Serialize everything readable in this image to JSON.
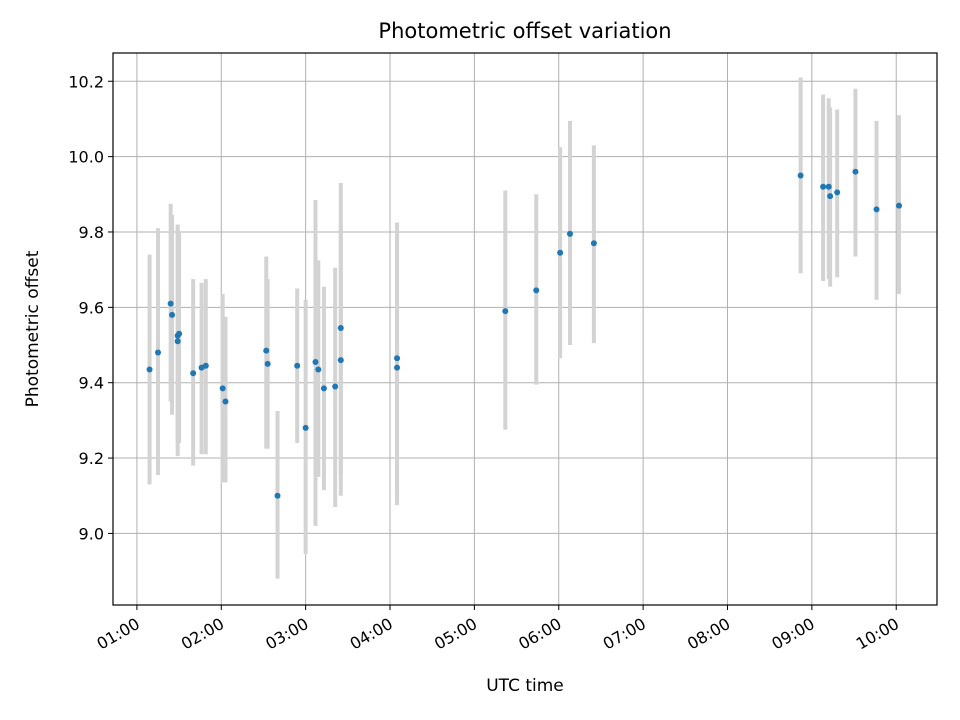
{
  "chart_data": {
    "type": "scatter",
    "title": "Photometric offset variation",
    "xlabel": "UTC time",
    "ylabel": "Photometric offset",
    "xlim": [
      "00:43",
      "10:29"
    ],
    "ylim": [
      8.81,
      10.275
    ],
    "x_ticks": [
      "01:00",
      "02:00",
      "03:00",
      "04:00",
      "05:00",
      "06:00",
      "07:00",
      "08:00",
      "09:00",
      "10:00"
    ],
    "y_ticks": [
      9.0,
      9.2,
      9.4,
      9.6,
      9.8,
      10.0,
      10.2
    ],
    "grid": true,
    "marker_color": "#1f77b4",
    "errorbar_color": "#d3d3d3",
    "series": [
      {
        "points": [
          {
            "x": "01:09",
            "y": 9.435,
            "lo": 9.13,
            "hi": 9.74
          },
          {
            "x": "01:15",
            "y": 9.48,
            "lo": 9.155,
            "hi": 9.81
          },
          {
            "x": "01:24",
            "y": 9.61,
            "lo": 9.35,
            "hi": 9.875
          },
          {
            "x": "01:25",
            "y": 9.58,
            "lo": 9.315,
            "hi": 9.845
          },
          {
            "x": "01:29",
            "y": 9.525,
            "lo": 9.24,
            "hi": 9.82
          },
          {
            "x": "01:29",
            "y": 9.51,
            "lo": 9.205,
            "hi": 9.81
          },
          {
            "x": "01:30",
            "y": 9.53,
            "lo": 9.24,
            "hi": 9.8
          },
          {
            "x": "01:40",
            "y": 9.425,
            "lo": 9.18,
            "hi": 9.675
          },
          {
            "x": "01:46",
            "y": 9.44,
            "lo": 9.21,
            "hi": 9.665
          },
          {
            "x": "01:49",
            "y": 9.445,
            "lo": 9.21,
            "hi": 9.675
          },
          {
            "x": "02:01",
            "y": 9.385,
            "lo": 9.135,
            "hi": 9.635
          },
          {
            "x": "02:03",
            "y": 9.35,
            "lo": 9.135,
            "hi": 9.575
          },
          {
            "x": "02:32",
            "y": 9.485,
            "lo": 9.225,
            "hi": 9.735
          },
          {
            "x": "02:33",
            "y": 9.45,
            "lo": 9.225,
            "hi": 9.675
          },
          {
            "x": "02:40",
            "y": 9.1,
            "lo": 8.88,
            "hi": 9.325
          },
          {
            "x": "02:54",
            "y": 9.445,
            "lo": 9.24,
            "hi": 9.65
          },
          {
            "x": "03:00",
            "y": 9.28,
            "lo": 8.945,
            "hi": 9.62
          },
          {
            "x": "03:07",
            "y": 9.455,
            "lo": 9.02,
            "hi": 9.885
          },
          {
            "x": "03:09",
            "y": 9.435,
            "lo": 9.15,
            "hi": 9.725
          },
          {
            "x": "03:13",
            "y": 9.385,
            "lo": 9.115,
            "hi": 9.655
          },
          {
            "x": "03:21",
            "y": 9.39,
            "lo": 9.07,
            "hi": 9.705
          },
          {
            "x": "03:25",
            "y": 9.545,
            "lo": 9.155,
            "hi": 9.93
          },
          {
            "x": "03:25",
            "y": 9.46,
            "lo": 9.1,
            "hi": 9.82
          },
          {
            "x": "04:05",
            "y": 9.465,
            "lo": 9.1,
            "hi": 9.825
          },
          {
            "x": "04:05",
            "y": 9.44,
            "lo": 9.075,
            "hi": 9.805
          },
          {
            "x": "05:22",
            "y": 9.59,
            "lo": 9.275,
            "hi": 9.91
          },
          {
            "x": "05:44",
            "y": 9.645,
            "lo": 9.395,
            "hi": 9.9
          },
          {
            "x": "06:01",
            "y": 9.745,
            "lo": 9.465,
            "hi": 10.025
          },
          {
            "x": "06:08",
            "y": 9.795,
            "lo": 9.5,
            "hi": 10.095
          },
          {
            "x": "06:25",
            "y": 9.77,
            "lo": 9.505,
            "hi": 10.03
          },
          {
            "x": "08:52",
            "y": 9.95,
            "lo": 9.69,
            "hi": 10.21
          },
          {
            "x": "09:08",
            "y": 9.92,
            "lo": 9.67,
            "hi": 10.165
          },
          {
            "x": "09:12",
            "y": 9.92,
            "lo": 9.675,
            "hi": 10.155
          },
          {
            "x": "09:13",
            "y": 9.895,
            "lo": 9.655,
            "hi": 10.13
          },
          {
            "x": "09:18",
            "y": 9.905,
            "lo": 9.68,
            "hi": 10.125
          },
          {
            "x": "09:31",
            "y": 9.96,
            "lo": 9.735,
            "hi": 10.18
          },
          {
            "x": "09:46",
            "y": 9.86,
            "lo": 9.62,
            "hi": 10.095
          },
          {
            "x": "10:02",
            "y": 9.87,
            "lo": 9.635,
            "hi": 10.11
          }
        ]
      }
    ]
  }
}
